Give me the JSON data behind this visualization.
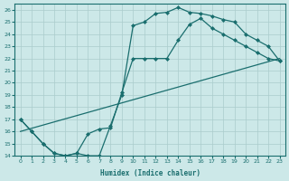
{
  "xlabel": "Humidex (Indice chaleur)",
  "xlim": [
    -0.5,
    23.5
  ],
  "ylim": [
    14,
    26.5
  ],
  "xticks": [
    0,
    1,
    2,
    3,
    4,
    5,
    6,
    7,
    8,
    9,
    10,
    11,
    12,
    13,
    14,
    15,
    16,
    17,
    18,
    19,
    20,
    21,
    22,
    23
  ],
  "yticks": [
    14,
    15,
    16,
    17,
    18,
    19,
    20,
    21,
    22,
    23,
    24,
    25,
    26
  ],
  "bg_color": "#cce8e8",
  "grid_color": "#aacccc",
  "line_color": "#1a6e6e",
  "curve1_x": [
    0,
    1,
    2,
    3,
    4,
    5,
    6,
    7,
    8,
    9,
    10,
    11,
    12,
    13,
    14,
    15,
    16,
    17,
    18,
    19,
    20,
    21,
    22,
    23
  ],
  "curve1_y": [
    17,
    16,
    15,
    14.2,
    14,
    14.2,
    14.0,
    14.0,
    16.5,
    19.0,
    24.7,
    25.0,
    25.7,
    25.8,
    26.2,
    25.8,
    25.7,
    25.5,
    25.2,
    25.0,
    24.0,
    23.5,
    23.0,
    21.8
  ],
  "curve2_x": [
    0,
    23
  ],
  "curve2_y": [
    16,
    22
  ],
  "curve3_x": [
    0,
    1,
    2,
    3,
    4,
    5,
    6,
    7,
    8,
    9,
    10,
    11,
    12,
    13,
    14,
    15,
    16,
    17,
    18,
    19,
    20,
    21,
    22,
    23
  ],
  "curve3_y": [
    17,
    16,
    15,
    14.2,
    14,
    14.2,
    15.8,
    16.2,
    16.3,
    19.2,
    22.0,
    22.0,
    22.0,
    22.0,
    23.5,
    24.8,
    25.3,
    24.5,
    24.0,
    23.5,
    23.0,
    22.5,
    22.0,
    21.8
  ],
  "marker": "D",
  "marker_size": 2.0
}
